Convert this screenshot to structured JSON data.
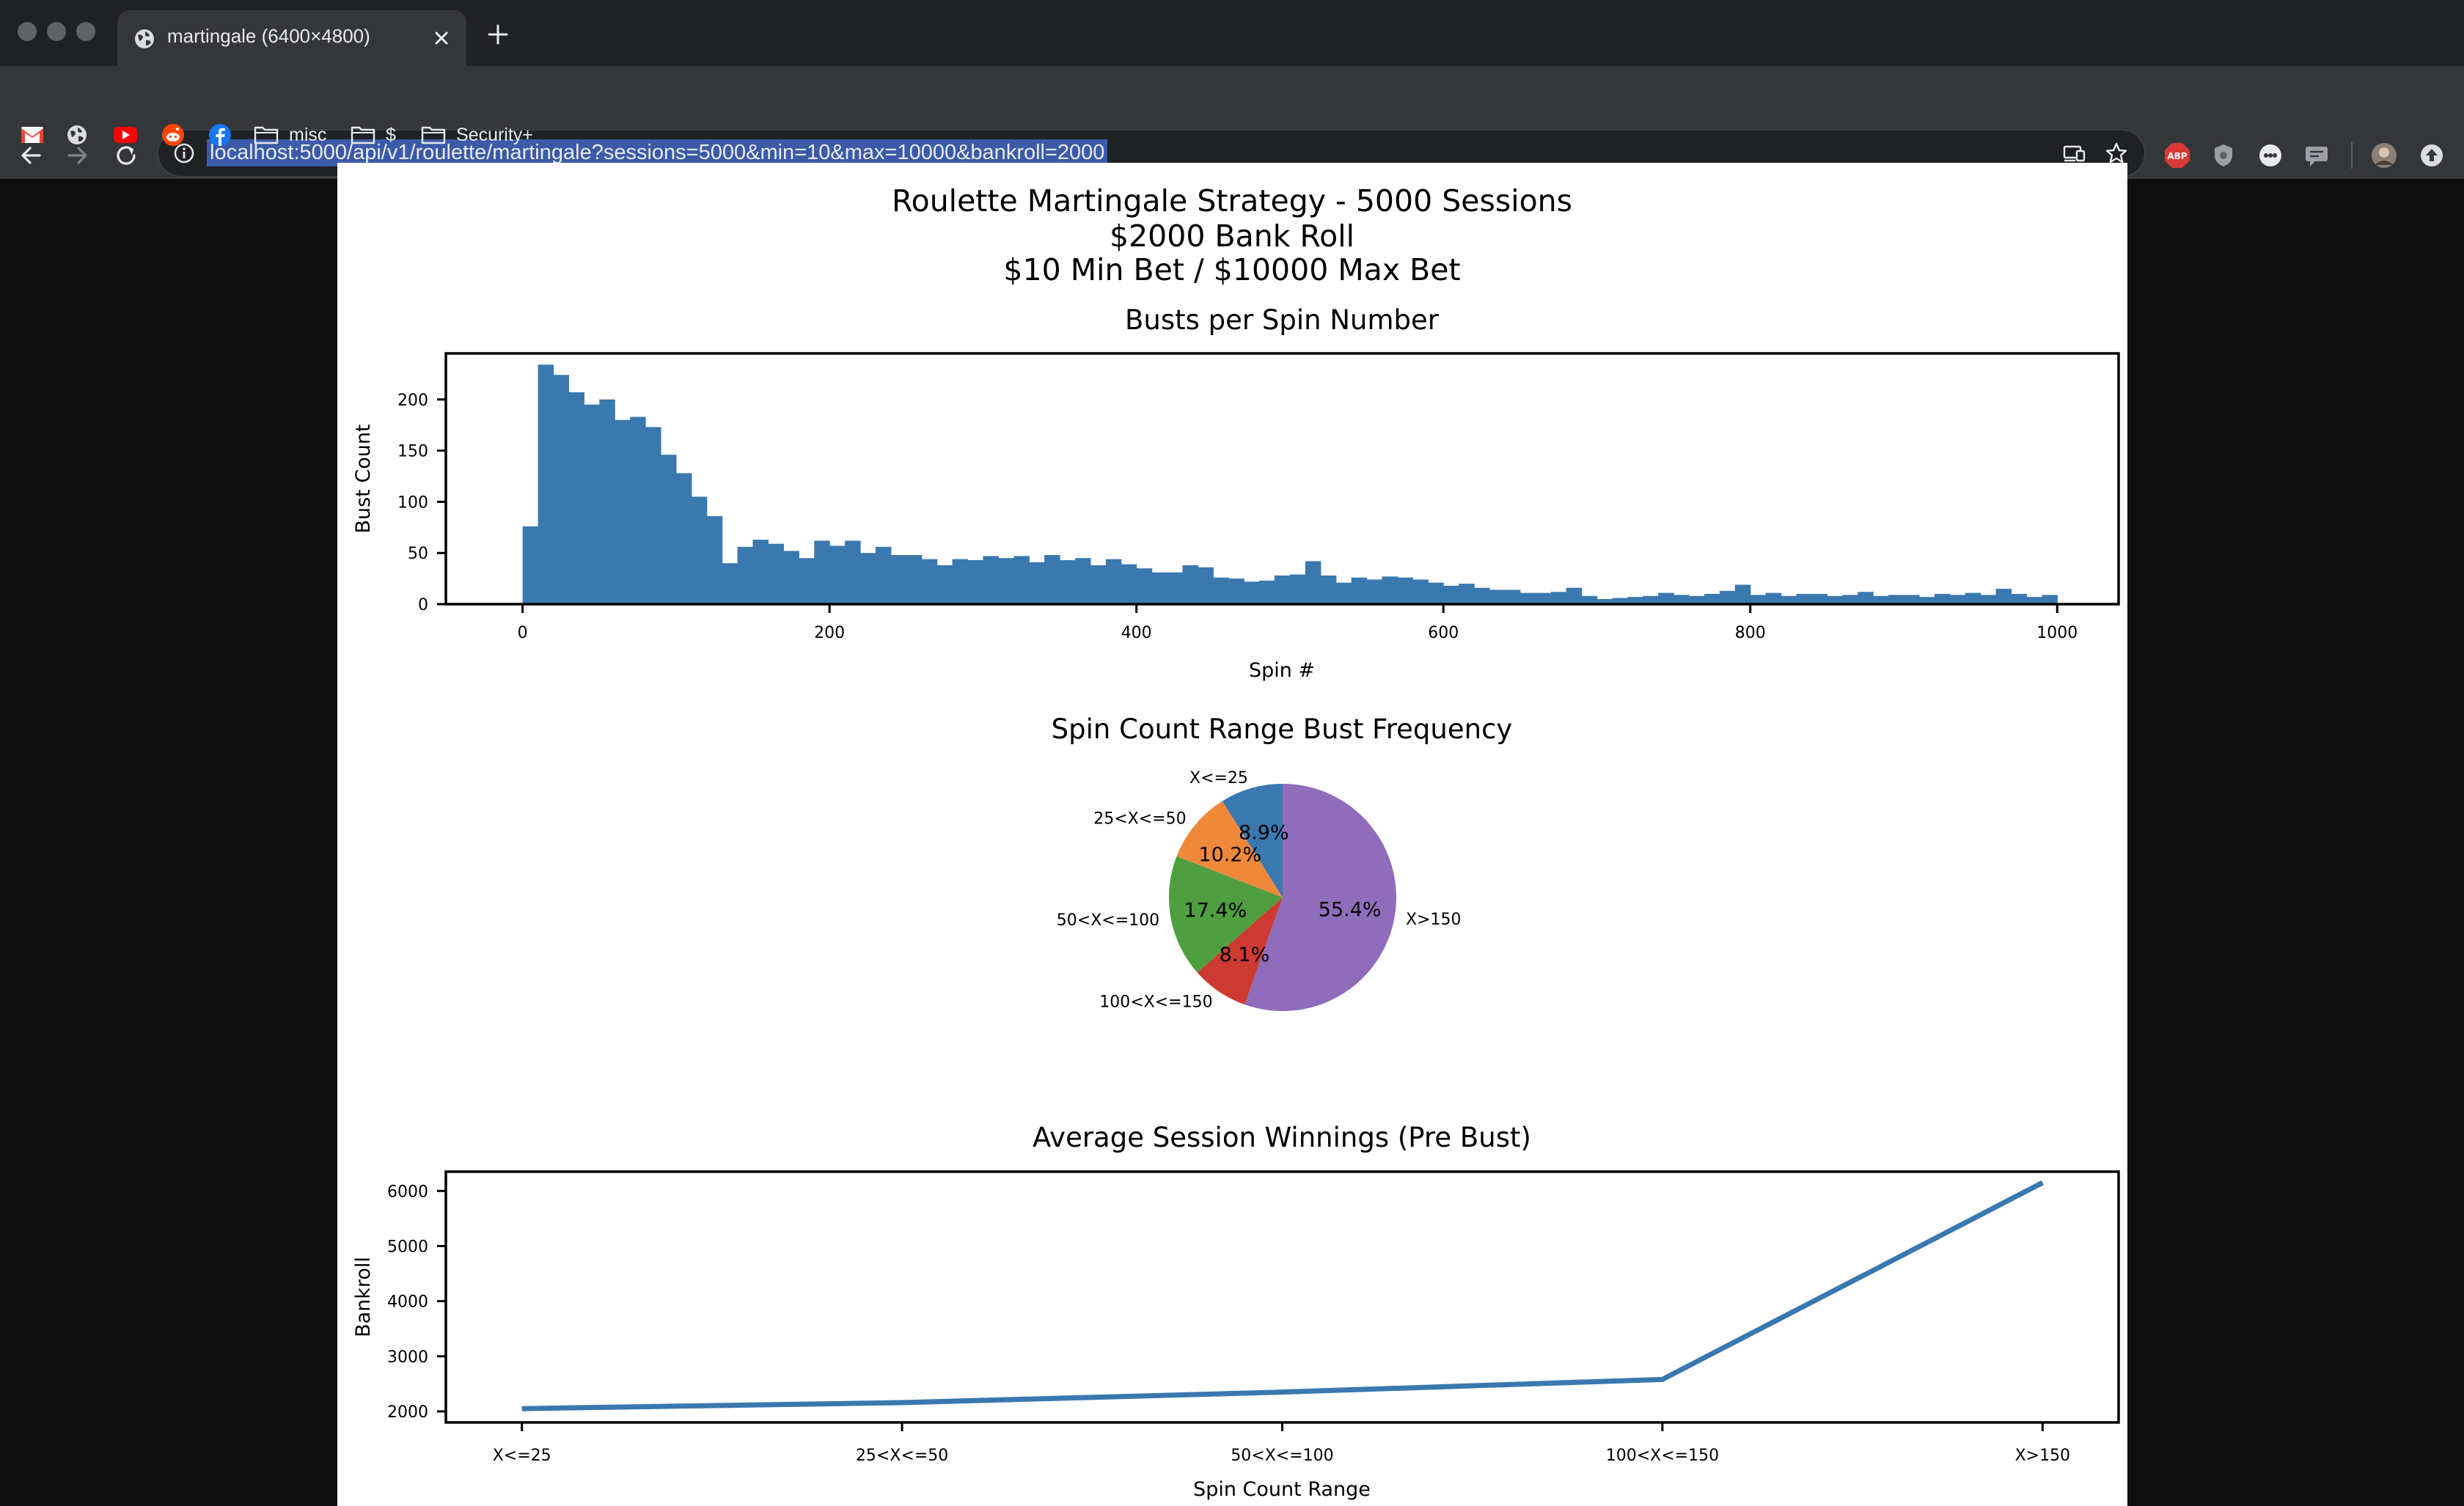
{
  "browser": {
    "tab": {
      "title": "martingale (6400×4800)"
    },
    "url": "localhost:5000/api/v1/roulette/martingale?sessions=5000&min=10&max=10000&bankroll=2000",
    "bookmarks": [
      {
        "label": "misc"
      },
      {
        "label": "$"
      },
      {
        "label": "Security+"
      }
    ],
    "extensions": {
      "abp_label": "ABP"
    }
  },
  "figure": {
    "suptitle": [
      "Roulette Martingale Strategy - 5000 Sessions",
      "$2000 Bank Roll",
      "$10 Min Bet / $10000 Max Bet"
    ]
  },
  "chart_data": [
    {
      "type": "bar",
      "title": "Busts per Spin Number",
      "xlabel": "Spin #",
      "ylabel": "Bust Count",
      "xlim": [
        -50,
        1040
      ],
      "ylim": [
        0,
        245
      ],
      "xticks": [
        0,
        200,
        400,
        600,
        800,
        1000
      ],
      "yticks": [
        0,
        50,
        100,
        150,
        200,
        250
      ],
      "bin_start": 0,
      "bin_width": 10,
      "color": "#3a78b0",
      "values": [
        76,
        234,
        224,
        207,
        195,
        200,
        180,
        183,
        173,
        146,
        128,
        105,
        86,
        40,
        56,
        63,
        59,
        52,
        45,
        62,
        57,
        62,
        50,
        56,
        48,
        48,
        44,
        38,
        44,
        43,
        47,
        45,
        47,
        41,
        48,
        43,
        45,
        38,
        44,
        39,
        35,
        31,
        31,
        38,
        36,
        26,
        25,
        22,
        23,
        28,
        29,
        42,
        28,
        21,
        26,
        24,
        27,
        26,
        24,
        21,
        18,
        20,
        16,
        14,
        14,
        11,
        11,
        12,
        16,
        8,
        5,
        6,
        7,
        8,
        11,
        9,
        8,
        10,
        13,
        19,
        9,
        11,
        8,
        10,
        10,
        8,
        9,
        12,
        8,
        9,
        9,
        7,
        10,
        9,
        11,
        9,
        15,
        10,
        7,
        9
      ]
    },
    {
      "type": "pie",
      "title": "Spin Count Range Bust Frequency",
      "slices": [
        {
          "label": "X<=25",
          "value": 8.9,
          "pct_label": "8.9%",
          "color": "#3a78b0"
        },
        {
          "label": "25<X<=50",
          "value": 10.2,
          "pct_label": "10.2%",
          "color": "#f0883a"
        },
        {
          "label": "50<X<=100",
          "value": 17.4,
          "pct_label": "17.4%",
          "color": "#4f9e3f"
        },
        {
          "label": "100<X<=150",
          "value": 8.1,
          "pct_label": "8.1%",
          "color": "#cd3a32"
        },
        {
          "label": "X>150",
          "value": 55.4,
          "pct_label": "55.4%",
          "color": "#8f6dbb"
        }
      ]
    },
    {
      "type": "line",
      "title": "Average Session Winnings (Pre Bust)",
      "xlabel": "Spin Count Range",
      "ylabel": "Bankroll",
      "categories": [
        "X<=25",
        "25<X<=50",
        "50<X<=100",
        "100<X<=150",
        "X>150"
      ],
      "values": [
        2050,
        2160,
        2350,
        2580,
        6150
      ],
      "ylim": [
        1800,
        6350
      ],
      "yticks": [
        2000,
        3000,
        4000,
        5000,
        6000
      ],
      "color": "#3a78b0"
    }
  ]
}
